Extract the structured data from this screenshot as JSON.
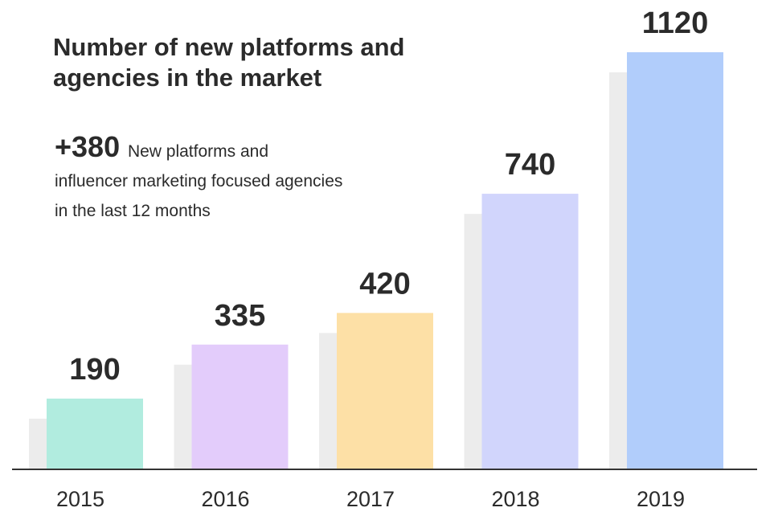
{
  "chart_data": {
    "type": "bar",
    "title": "Number of new platforms and agencies in the market",
    "annotation": {
      "highlight": "+380",
      "text": "New platforms and influencer marketing focused agencies in the last 12 months"
    },
    "categories": [
      "2015",
      "2016",
      "2017",
      "2018",
      "2019"
    ],
    "values": [
      190,
      335,
      420,
      740,
      1120
    ],
    "bar_colors": [
      "#b1ecdf",
      "#e3ccfb",
      "#fde0a6",
      "#d1d5fc",
      "#b1cdfb"
    ],
    "shadow_color": "#ececec",
    "axis_color": "#333333",
    "xlabel": "",
    "ylabel": "",
    "ylim": [
      0,
      1120
    ],
    "grid": false,
    "legend": "none"
  }
}
